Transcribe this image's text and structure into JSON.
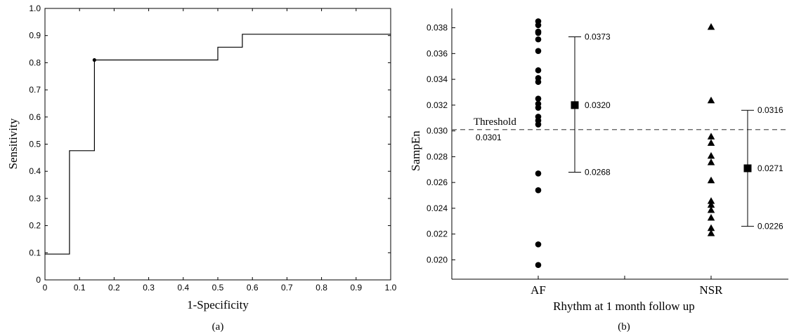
{
  "chart_data": [
    {
      "type": "line",
      "panel_label": "(a)",
      "xlabel": "1-Specificity",
      "ylabel": "Sensitivity",
      "xlim": [
        0,
        1
      ],
      "ylim": [
        0,
        1
      ],
      "x_ticks": [
        "0",
        "0.1",
        "0.2",
        "0.3",
        "0.4",
        "0.5",
        "0.6",
        "0.7",
        "0.8",
        "0.9",
        "1.0"
      ],
      "y_ticks": [
        "0",
        "0.1",
        "0.2",
        "0.3",
        "0.4",
        "0.5",
        "0.6",
        "0.7",
        "0.8",
        "0.9",
        "1.0"
      ],
      "x_tick_values": [
        0,
        0.1,
        0.2,
        0.3,
        0.4,
        0.5,
        0.6,
        0.7,
        0.8,
        0.9,
        1.0
      ],
      "y_tick_values": [
        0,
        0.1,
        0.2,
        0.3,
        0.4,
        0.5,
        0.6,
        0.7,
        0.8,
        0.9,
        1.0
      ],
      "grid": false,
      "step_curve": [
        {
          "x": 0,
          "y": 0.095
        },
        {
          "x": 0.071,
          "y": 0.095
        },
        {
          "x": 0.071,
          "y": 0.476
        },
        {
          "x": 0.143,
          "y": 0.476
        },
        {
          "x": 0.143,
          "y": 0.81
        },
        {
          "x": 0.5,
          "y": 0.81
        },
        {
          "x": 0.5,
          "y": 0.857
        },
        {
          "x": 0.571,
          "y": 0.857
        },
        {
          "x": 0.571,
          "y": 0.905
        },
        {
          "x": 1.0,
          "y": 0.905
        }
      ],
      "marked_point": {
        "x": 0.143,
        "y": 0.81
      }
    },
    {
      "type": "scatter",
      "panel_label": "(b)",
      "xlabel": "Rhythm at 1 month follow up",
      "ylabel": "SampEn",
      "categories": [
        "AF",
        "NSR"
      ],
      "ylim": [
        0.0185,
        0.0395
      ],
      "y_ticks": [
        "0.020",
        "0.022",
        "0.024",
        "0.026",
        "0.028",
        "0.030",
        "0.032",
        "0.034",
        "0.036",
        "0.038"
      ],
      "y_tick_values": [
        0.02,
        0.022,
        0.024,
        0.026,
        0.028,
        0.03,
        0.032,
        0.034,
        0.036,
        0.038
      ],
      "threshold": {
        "label": "Threshold",
        "value_label": "0.0301",
        "value": 0.0301
      },
      "series": [
        {
          "category": "AF",
          "marker": "circle",
          "values": [
            0.0385,
            0.0382,
            0.0377,
            0.0376,
            0.0371,
            0.0362,
            0.0347,
            0.0341,
            0.0338,
            0.0325,
            0.0321,
            0.0318,
            0.0311,
            0.0308,
            0.0305,
            0.0267,
            0.0254,
            0.0212,
            0.0196
          ],
          "summary": {
            "mean": 0.032,
            "upper": 0.0373,
            "lower": 0.0268,
            "mean_label": "0.0320",
            "upper_label": "0.0373",
            "lower_label": "0.0268"
          }
        },
        {
          "category": "NSR",
          "marker": "triangle",
          "values": [
            0.0381,
            0.0324,
            0.0296,
            0.0291,
            0.0281,
            0.0276,
            0.0262,
            0.0246,
            0.0243,
            0.0239,
            0.0233,
            0.0225,
            0.0221
          ],
          "summary": {
            "mean": 0.0271,
            "upper": 0.0316,
            "lower": 0.0226,
            "mean_label": "0.0271",
            "upper_label": "0.0316",
            "lower_label": "0.0226"
          }
        }
      ]
    }
  ]
}
